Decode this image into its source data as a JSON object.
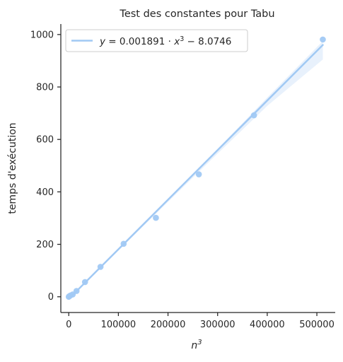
{
  "chart_data": {
    "type": "scatter",
    "title": "Test des constantes pour Tabu",
    "xlabel_base": "n",
    "xlabel_sup": "3",
    "ylabel": "temps d'exécution",
    "xlim": [
      -16000,
      537000
    ],
    "ylim": [
      -60,
      1040
    ],
    "xticks": [
      0,
      100000,
      200000,
      300000,
      400000,
      500000
    ],
    "xtick_labels": [
      "0",
      "100000",
      "200000",
      "300000",
      "400000",
      "500000"
    ],
    "yticks": [
      0,
      200,
      400,
      600,
      800,
      1000
    ],
    "ytick_labels": [
      "0",
      "200",
      "400",
      "600",
      "800",
      "1000"
    ],
    "grid": false,
    "legend_position": "top-left",
    "legend_parts": {
      "y": "y",
      "eq": " = 0.001891 · ",
      "x": "x",
      "exp": "3",
      "rest": " − 8.0746"
    },
    "point_color": "#a1c9f4",
    "line_color": "#a1c9f4",
    "band_color": "#e6effc",
    "points": [
      {
        "x": 0,
        "y": 0
      },
      {
        "x": 1000,
        "y": 2
      },
      {
        "x": 3375,
        "y": 5
      },
      {
        "x": 8000,
        "y": 9
      },
      {
        "x": 15625,
        "y": 22
      },
      {
        "x": 32768,
        "y": 56
      },
      {
        "x": 64000,
        "y": 114
      },
      {
        "x": 110592,
        "y": 202
      },
      {
        "x": 175616,
        "y": 301
      },
      {
        "x": 262144,
        "y": 467
      },
      {
        "x": 373248,
        "y": 692
      },
      {
        "x": 512000,
        "y": 981
      }
    ],
    "regression": {
      "slope": 0.001891,
      "intercept": -8.0746,
      "x_range": [
        0,
        512000
      ]
    },
    "confidence_band": {
      "x": [
        0,
        100000,
        200000,
        300000,
        400000,
        512000
      ],
      "upper": [
        -4,
        184,
        372,
        563,
        760,
        975
      ],
      "lower": [
        -12,
        176,
        362,
        546,
        728,
        905
      ]
    }
  }
}
